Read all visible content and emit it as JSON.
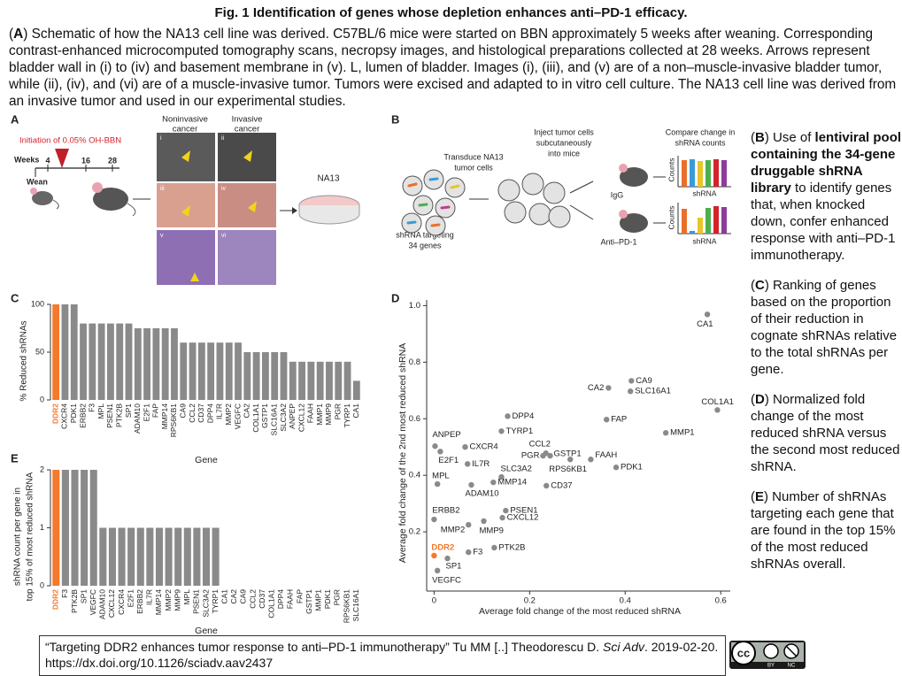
{
  "header": {
    "title": "Fig. 1 Identification of genes whose depletion enhances anti–PD-1 efficacy.",
    "caption": [
      {
        "text": "("
      },
      {
        "text": "A",
        "bold": true
      },
      {
        "text": ") Schematic of how the NA13 cell line was derived. C57BL/6 mice were started on BBN approximately 5 weeks after weaning. Corresponding contrast-enhanced microcomputed tomography scans, necropsy images, and histological preparations collected at 28 weeks. Arrows represent bladder wall in (i) to (iv) and basement membrane in (v). L, lumen of bladder. Images (i), (iii), and (v) are of a non–muscle-invasive bladder tumor, while (ii), (iv), and (vi) are of a muscle-invasive tumor. Tumors were excised and adapted to in vitro cell culture. The NA13 cell line was derived from an invasive tumor and used in our experimental studies."
      }
    ]
  },
  "panel_a": {
    "letter": "A",
    "noninvasive": [
      "Noninvasive",
      "cancer"
    ],
    "invasive": [
      "Invasive",
      "cancer"
    ],
    "initiation": "Initiation of 0.05% OH-BBN",
    "weeks": "Weeks",
    "week_marks": [
      4,
      16,
      28
    ],
    "wean": "Wean",
    "image_labels": [
      "i",
      "ii",
      "iii",
      "iv",
      "v",
      "vi"
    ],
    "cell_line": "NA13"
  },
  "panel_b": {
    "letter": "B",
    "transduce": [
      "Transduce NA13",
      "tumor cells"
    ],
    "inject": [
      "Inject tumor cells",
      "subcutaneously",
      "into mice"
    ],
    "compare": [
      "Compare change in",
      "shRNA counts"
    ],
    "targeting": [
      "shRNA targeting",
      "34 genes"
    ],
    "igg": "IgG",
    "anti": "Anti–PD-1",
    "counts": [
      "Counts",
      "Counts"
    ],
    "shrna": [
      "shRNA",
      "shRNA"
    ]
  },
  "descriptions": [
    [
      {
        "text": "("
      },
      {
        "text": "B",
        "bold": true
      },
      {
        "text": ") Use of "
      },
      {
        "text": "lentiviral pool containing the 34-gene druggable shRNA library",
        "bold": true
      },
      {
        "text": " to identify genes that, when knocked down, confer enhanced response with anti–PD-1 immunotherapy."
      }
    ],
    [
      {
        "text": "("
      },
      {
        "text": "C",
        "bold": true
      },
      {
        "text": ") Ranking of genes based on the proportion of their reduction in cognate shRNAs relative to the total shRNAs per gene."
      }
    ],
    [
      {
        "text": "("
      },
      {
        "text": "D",
        "bold": true
      },
      {
        "text": ") Normalized fold change of the most reduced shRNA versus the second most reduced shRNA."
      }
    ],
    [
      {
        "text": "("
      },
      {
        "text": "E",
        "bold": true
      },
      {
        "text": ") Number of shRNAs targeting each gene that are found in the top 15% of the most reduced shRNAs overall."
      }
    ]
  ],
  "chart_data": [
    {
      "type": "bar",
      "panel": "C",
      "ylabel": [
        "% Reduced shRNAs"
      ],
      "xlabel": "Gene",
      "categories": [
        "DDR2",
        "CXCR4",
        "PDK1",
        "ERBB2",
        "F3",
        "MPL",
        "PSEN1",
        "PTK2B",
        "SP1",
        "ADAM10",
        "E2F1",
        "FAP",
        "MMP14",
        "RPS6KB1",
        "CA9",
        "CCL2",
        "CD37",
        "DPP4",
        "IL7R",
        "MMP2",
        "VEGFC",
        "CA2",
        "COL1A1",
        "GSTP1",
        "SLC16A1",
        "SLC3A2",
        "ANPEP",
        "CXCL12",
        "FAAH",
        "MMP1",
        "MMP9",
        "PGR",
        "TYRP1",
        "CA1"
      ],
      "values": [
        100,
        100,
        100,
        80,
        80,
        80,
        80,
        80,
        80,
        75,
        75,
        75,
        75,
        75,
        60,
        60,
        60,
        60,
        60,
        60,
        60,
        50,
        50,
        50,
        50,
        50,
        40,
        40,
        40,
        40,
        40,
        40,
        40,
        20
      ],
      "color": "#8a8a8a",
      "highlight": {
        "category": "DDR2",
        "color": "#f4792b"
      },
      "ylim": [
        0,
        100
      ],
      "yticks": [
        0,
        50,
        100
      ]
    },
    {
      "type": "scatter",
      "panel": "D",
      "xlabel": "Average fold change of the most reduced shRNA",
      "ylabel": "Average fold change of the 2nd most reduced shRNA",
      "labels": [
        "CA1",
        "CA9",
        "SLC16A1",
        "CA2",
        "COL1A1",
        "FAP",
        "MMP1",
        "DPP4",
        "TYRP1",
        "ANPEP",
        "CXCR4",
        "E2F1",
        "IL7R",
        "CCL2",
        "GSTP1",
        "PGR",
        "RPS6KB1",
        "FAAH",
        "PDK1",
        "SLC3A2",
        "MMP14",
        "CD37",
        "ADAM10",
        "MPL",
        "PSEN1",
        "CXCL12",
        "ERBB2",
        "MMP9",
        "MMP2",
        "PTK2B",
        "F3",
        "DDR2",
        "SP1",
        "VEGFC"
      ],
      "x": [
        0.572,
        0.413,
        0.411,
        0.365,
        0.593,
        0.361,
        0.485,
        0.154,
        0.141,
        0.002,
        0.065,
        0.013,
        0.07,
        0.234,
        0.243,
        0.228,
        0.285,
        0.328,
        0.381,
        0.141,
        0.124,
        0.235,
        0.078,
        0.007,
        0.15,
        0.143,
        0,
        0.104,
        0.072,
        0.126,
        0.072,
        0,
        0.028,
        0.007
      ],
      "y": [
        0.969,
        0.734,
        0.697,
        0.709,
        0.631,
        0.597,
        0.55,
        0.609,
        0.556,
        0.503,
        0.5,
        0.484,
        0.44,
        0.478,
        0.469,
        0.469,
        0.456,
        0.456,
        0.428,
        0.394,
        0.375,
        0.363,
        0.366,
        0.369,
        0.275,
        0.25,
        0.244,
        0.238,
        0.225,
        0.144,
        0.128,
        0.116,
        0.106,
        0.063
      ],
      "color": "#8a8a8a",
      "highlight": {
        "category": "DDR2",
        "color": "#f4792b"
      },
      "xlim": [
        -0.01,
        0.62
      ],
      "ylim": [
        0,
        1.02
      ],
      "xticks": [
        0,
        0.2,
        0.4,
        0.6
      ],
      "yticks": [
        0.2,
        0.4,
        0.6,
        0.8,
        {
          "value": 1,
          "label": "1.0"
        }
      ]
    },
    {
      "type": "bar",
      "panel": "E",
      "ylabel": [
        "shRNA count per gene in",
        "top 15% of most reduced shRNA"
      ],
      "xlabel": "Gene",
      "categories": [
        "DDR2",
        "F3",
        "PTK2B",
        "SP1",
        "VEGFC",
        "ADAM10",
        "CXCL12",
        "CXCR4",
        "E2F1",
        "ERBB2",
        "IL7R",
        "MMP14",
        "MMP2",
        "MMP9",
        "MPL",
        "PSEN1",
        "SLC3A2",
        "TYRP1",
        "CA1",
        "CA2",
        "CA9",
        "CCL2",
        "CD37",
        "COL1A1",
        "DPP4",
        "FAAH",
        "FAP",
        "GSTP1",
        "MMP1",
        "PDK1",
        "PGR",
        "RPS6KB1",
        "SLC16A1"
      ],
      "values": [
        2,
        2,
        2,
        2,
        2,
        1,
        1,
        1,
        1,
        1,
        1,
        1,
        1,
        1,
        1,
        1,
        1,
        1,
        0,
        0,
        0,
        0,
        0,
        0,
        0,
        0,
        0,
        0,
        0,
        0,
        0,
        0,
        0
      ],
      "color": "#8a8a8a",
      "highlight": {
        "category": "DDR2",
        "color": "#f4792b"
      },
      "ylim": [
        0,
        2
      ],
      "yticks": [
        0,
        1,
        2
      ]
    }
  ],
  "citation": [
    {
      "text": "“Targeting DDR2 enhances tumor response to anti–PD-1 immunotherapy” Tu MM [..] Theodorescu D. "
    },
    {
      "text": "Sci Adv",
      "italic": true
    },
    {
      "text": ". 2019-02-20. https://dx.doi.org/10.1126/sciadv.aav2437"
    }
  ],
  "license": {
    "cc": "cc",
    "by": "BY",
    "nc": "NC"
  }
}
